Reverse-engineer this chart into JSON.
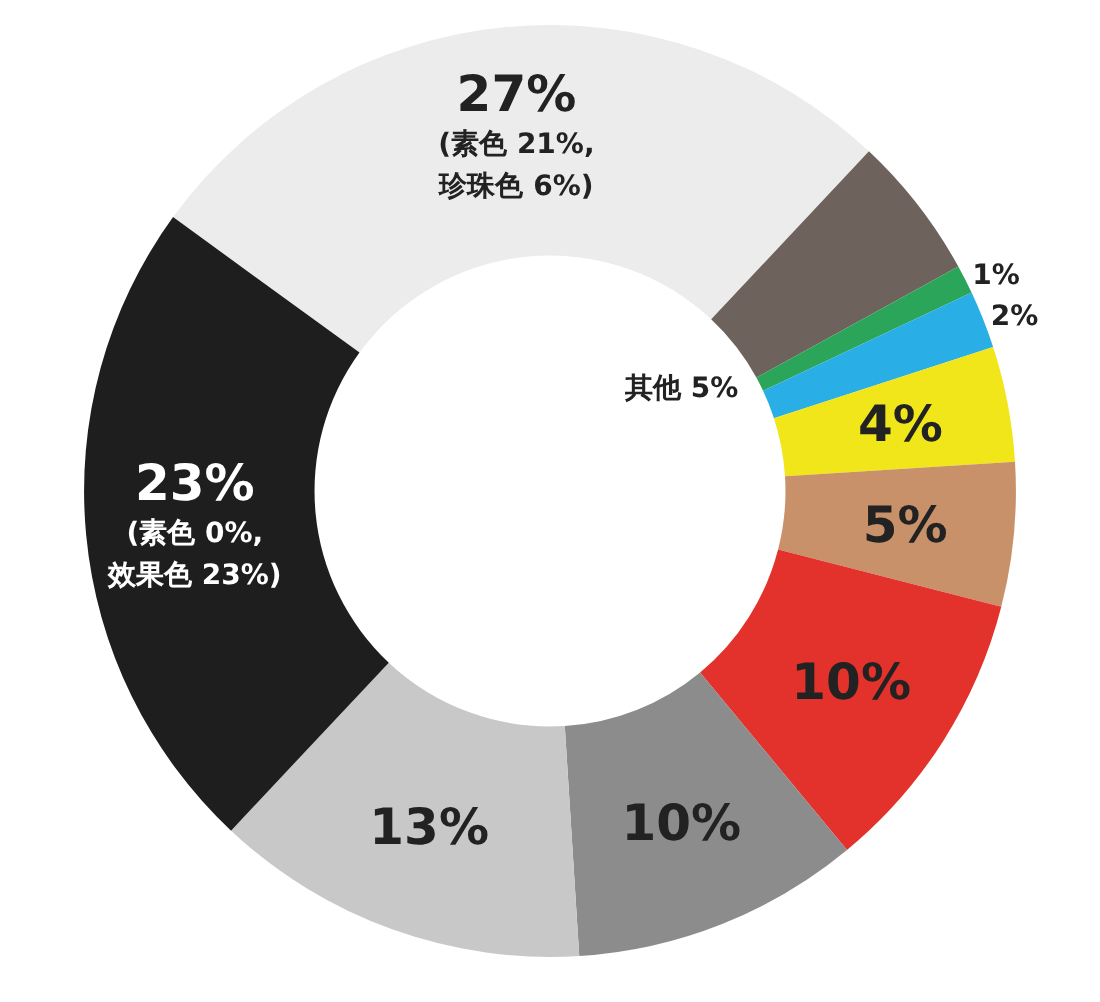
{
  "chart_data": {
    "type": "donut",
    "categories": [
      null,
      null,
      null,
      null,
      null,
      null,
      null,
      null,
      null,
      null
    ],
    "values": [
      27,
      5,
      1,
      2,
      4,
      5,
      10,
      10,
      13,
      23
    ],
    "colors": [
      "#ececec",
      "#6e625c",
      "#2aa55a",
      "#29aee6",
      "#f0e619",
      "#c9916a",
      "#e3322b",
      "#8c8c8c",
      "#c8c8c8",
      "#1e1e1e"
    ],
    "value_labels": [
      "27%\n(素色 21%,\n珍珠色 6%)",
      "其他 5%",
      "1%",
      "2%",
      "4%",
      "5%",
      "10%",
      "10%",
      "13%",
      "23%\n(素色 0%,\n效果色 23%)"
    ]
  }
}
